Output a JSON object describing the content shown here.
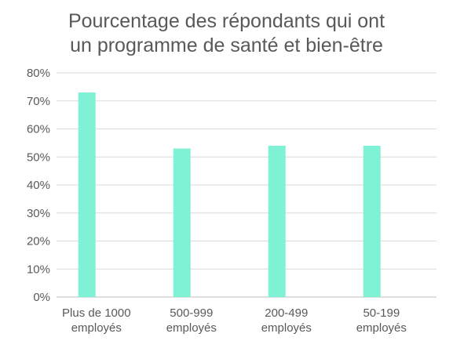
{
  "chart_data": {
    "type": "bar",
    "title_lines": [
      "Pourcentage des répondants qui ont",
      "un programme de santé et bien-être"
    ],
    "categories": [
      [
        "Plus de 1000",
        "employés"
      ],
      [
        "500-999",
        "employés"
      ],
      [
        "200-499",
        "employés"
      ],
      [
        "50-199",
        "employés"
      ]
    ],
    "values": [
      73,
      53,
      54,
      54
    ],
    "ylim": [
      0,
      80
    ],
    "yticks": [
      0,
      10,
      20,
      30,
      40,
      50,
      60,
      70,
      80
    ],
    "ytick_format": "{v}%",
    "grid": true,
    "legend": "none",
    "xlabel": "",
    "ylabel": "",
    "colors": {
      "bar": "#7FF2D5",
      "grid": "#D9D9D9",
      "axis": "#BFBFBF",
      "text": "#595959"
    }
  }
}
